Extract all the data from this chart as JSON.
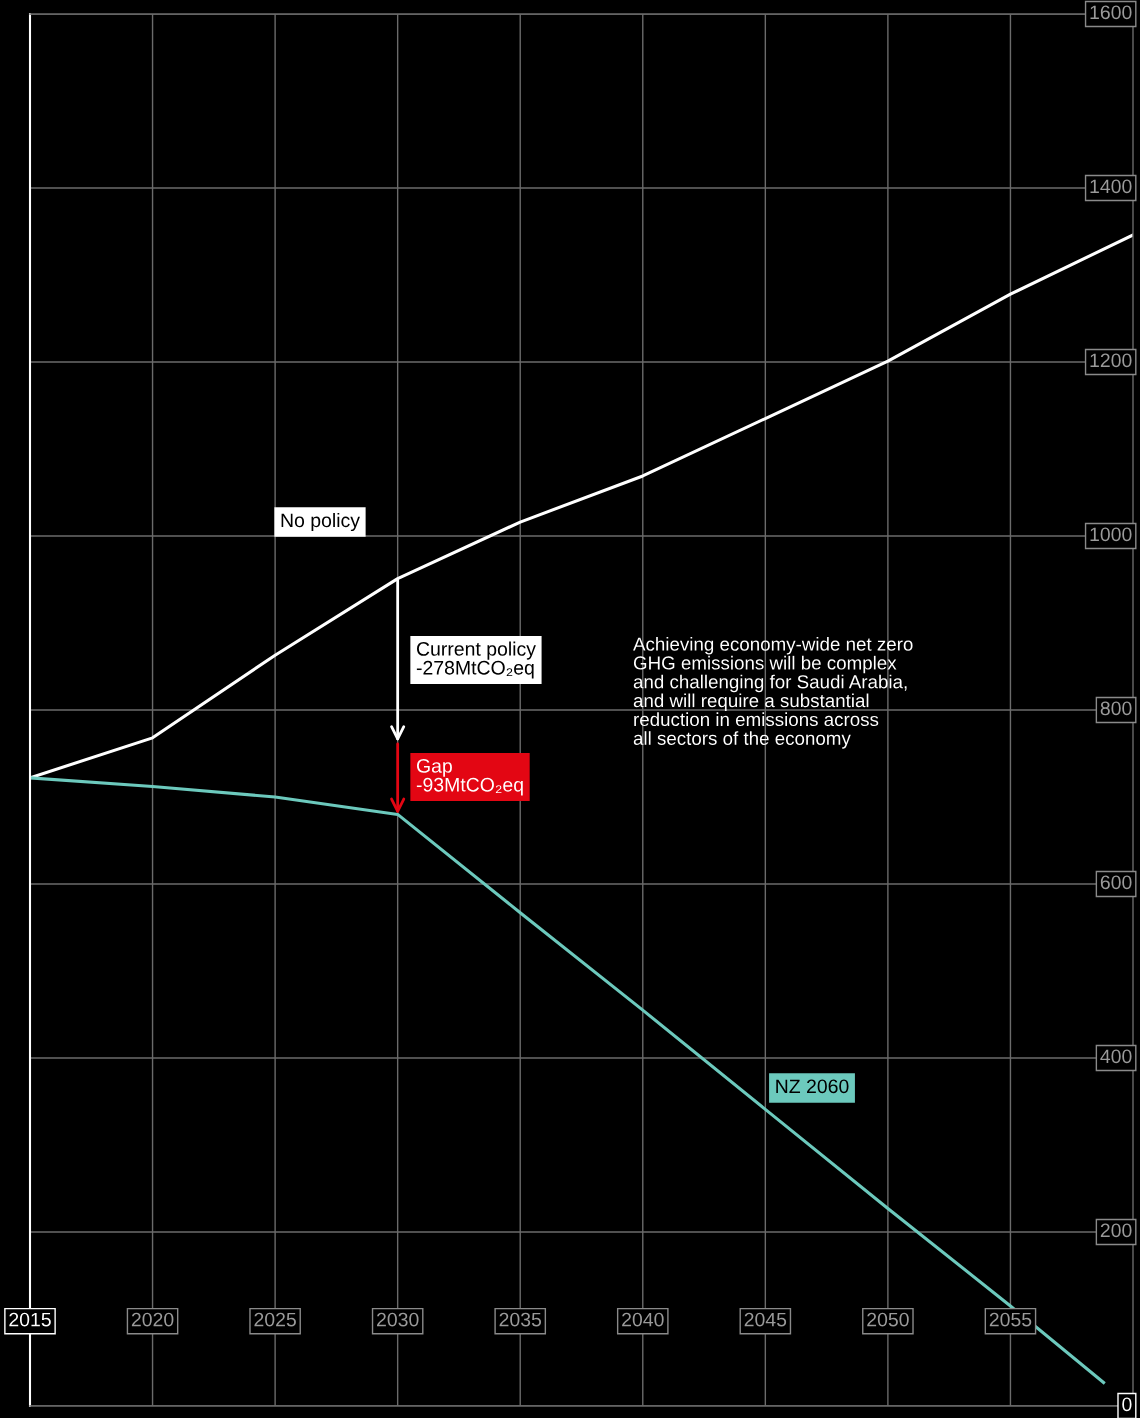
{
  "chart_data": {
    "type": "line",
    "x": [
      2015,
      2020,
      2025,
      2030,
      2035,
      2040,
      2045,
      2050,
      2055,
      2060
    ],
    "series": [
      {
        "name": "No policy",
        "color": "#ffffff",
        "values": [
          722,
          768,
          863,
          951,
          1016,
          1069,
          1135,
          1201,
          1278,
          1346
        ]
      },
      {
        "name": "NZ 2060",
        "color": "#6cc9bd",
        "x": [
          2015,
          2020,
          2025,
          2030,
          2035,
          2040,
          2045,
          2050,
          2055,
          2058.8
        ],
        "values": [
          722,
          712,
          700,
          680,
          567,
          455,
          341,
          227,
          115,
          27
        ]
      }
    ],
    "xlim": [
      2015,
      2060
    ],
    "ylim": [
      0,
      1600
    ],
    "xticks": [
      2015,
      2020,
      2025,
      2030,
      2035,
      2040,
      2045,
      2050,
      2055
    ],
    "yticks": [
      0,
      200,
      400,
      600,
      800,
      1000,
      1200,
      1400,
      1600
    ],
    "grid": true,
    "annotations": [
      "Current policy\n-278MtCO₂eq",
      {
        "text": "Gap\n-93MtCO₂eq",
        "x": 2030,
        "y": 680
      },
      "Achieving economy-wide net zero\nGHG emissions will be complex\nand challenging for Saudi Arabia,\nand will require a substantial\nreduction in emissions across\nall sectors of the economy"
    ]
  }
}
